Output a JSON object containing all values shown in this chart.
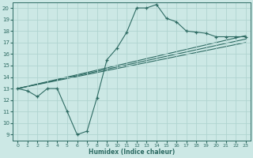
{
  "title": "",
  "xlabel": "Humidex (Indice chaleur)",
  "ylabel": "",
  "bg_color": "#cce8e5",
  "line_color": "#2e6b63",
  "grid_color": "#b0d4d0",
  "xlim": [
    -0.5,
    23.5
  ],
  "ylim": [
    8.5,
    20.5
  ],
  "xticks": [
    0,
    1,
    2,
    3,
    4,
    5,
    6,
    7,
    8,
    9,
    10,
    11,
    12,
    13,
    14,
    15,
    16,
    17,
    18,
    19,
    20,
    21,
    22,
    23
  ],
  "yticks": [
    9,
    10,
    11,
    12,
    13,
    14,
    15,
    16,
    17,
    18,
    19,
    20
  ],
  "line1_x": [
    0,
    1,
    2,
    3,
    4,
    5,
    6,
    7,
    8,
    9,
    10,
    11,
    12,
    13,
    14,
    15,
    16,
    17,
    18,
    19,
    20,
    21,
    22,
    23
  ],
  "line1_y": [
    13.0,
    12.8,
    12.3,
    13.0,
    13.0,
    11.0,
    9.0,
    9.3,
    12.2,
    15.5,
    16.5,
    17.9,
    20.0,
    20.0,
    20.3,
    19.1,
    18.8,
    18.0,
    17.9,
    17.8,
    17.5,
    17.5,
    17.5,
    17.5
  ],
  "line2_x": [
    0,
    23
  ],
  "line2_y": [
    13.0,
    17.6
  ],
  "line3_x": [
    0,
    23
  ],
  "line3_y": [
    13.0,
    17.3
  ],
  "line4_x": [
    0,
    23
  ],
  "line4_y": [
    13.0,
    17.0
  ]
}
